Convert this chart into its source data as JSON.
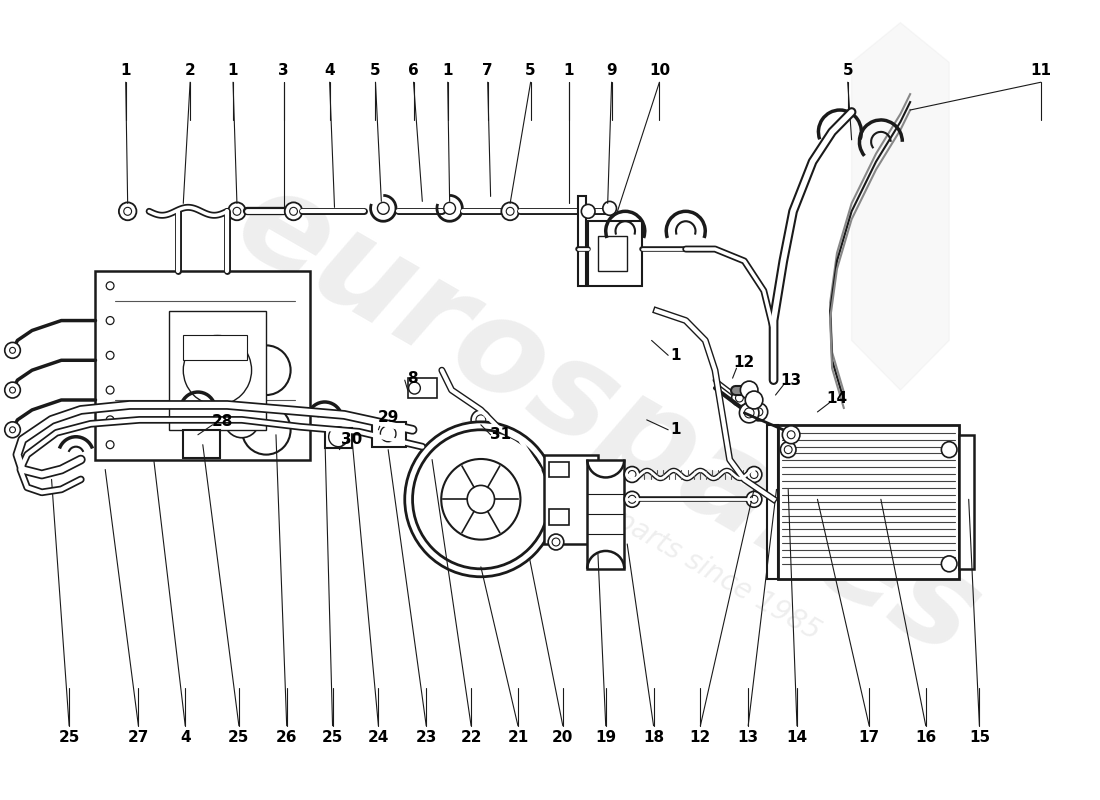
{
  "background_color": "#ffffff",
  "line_color": "#1a1a1a",
  "watermark_text": "eurospares",
  "watermark_subtext": "a passion for parts since 1985",
  "watermark_color": "#d8d8d8",
  "watermark_alpha": 0.4,
  "top_labels": [
    [
      "1",
      0.115
    ],
    [
      "2",
      0.175
    ],
    [
      "1",
      0.215
    ],
    [
      "3",
      0.262
    ],
    [
      "4",
      0.305
    ],
    [
      "5",
      0.348
    ],
    [
      "6",
      0.383
    ],
    [
      "1",
      0.415
    ],
    [
      "7",
      0.452
    ],
    [
      "5",
      0.492
    ],
    [
      "1",
      0.528
    ],
    [
      "9",
      0.568
    ],
    [
      "10",
      0.612
    ],
    [
      "5",
      0.788
    ],
    [
      "11",
      0.968
    ]
  ],
  "bottom_labels": [
    [
      "25",
      0.062
    ],
    [
      "27",
      0.127
    ],
    [
      "4",
      0.17
    ],
    [
      "25",
      0.22
    ],
    [
      "26",
      0.265
    ],
    [
      "25",
      0.308
    ],
    [
      "24",
      0.35
    ],
    [
      "23",
      0.395
    ],
    [
      "22",
      0.437
    ],
    [
      "21",
      0.48
    ],
    [
      "20",
      0.522
    ],
    [
      "19",
      0.562
    ],
    [
      "18",
      0.607
    ],
    [
      "12",
      0.65
    ],
    [
      "13",
      0.695
    ],
    [
      "14",
      0.74
    ],
    [
      "17",
      0.808
    ],
    [
      "16",
      0.86
    ],
    [
      "15",
      0.91
    ]
  ]
}
